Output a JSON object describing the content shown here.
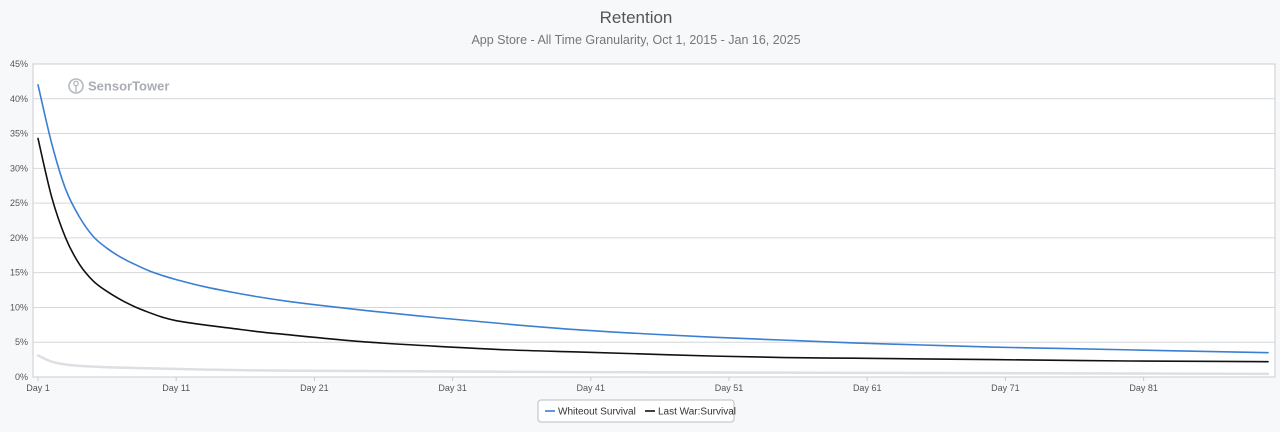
{
  "chart_data": {
    "type": "line",
    "title": "Retention",
    "subtitle": "App Store - All Time Granularity, Oct 1, 2015 - Jan 16, 2025",
    "xlabel": "",
    "ylabel": "",
    "x_range": [
      1,
      90
    ],
    "ylim": [
      0,
      45
    ],
    "y_ticks": [
      0,
      5,
      10,
      15,
      20,
      25,
      30,
      35,
      40,
      45
    ],
    "y_tick_labels": [
      "0%",
      "5%",
      "10%",
      "15%",
      "20%",
      "25%",
      "30%",
      "35%",
      "40%",
      "45%"
    ],
    "x_ticks": [
      1,
      11,
      21,
      31,
      41,
      51,
      61,
      71,
      81
    ],
    "x_tick_labels": [
      "Day 1",
      "Day 11",
      "Day 21",
      "Day 31",
      "Day 41",
      "Day 51",
      "Day 61",
      "Day 71",
      "Day 81"
    ],
    "grid": true,
    "legend_position": "bottom-center",
    "watermark": "SensorTower",
    "series": [
      {
        "name": "Whiteout Survival",
        "color": "#3a7fd1",
        "x": [
          1,
          2,
          3,
          4,
          5,
          6,
          7,
          8,
          9,
          10,
          11,
          13,
          15,
          17,
          19,
          21,
          25,
          30,
          35,
          40,
          45,
          50,
          55,
          60,
          65,
          70,
          75,
          80,
          85,
          90
        ],
        "y": [
          42,
          33.5,
          27,
          23,
          20.2,
          18.5,
          17.2,
          16.2,
          15.3,
          14.6,
          14.0,
          13.0,
          12.2,
          11.5,
          10.9,
          10.4,
          9.5,
          8.5,
          7.6,
          6.8,
          6.2,
          5.7,
          5.3,
          4.9,
          4.6,
          4.3,
          4.1,
          3.9,
          3.7,
          3.5
        ]
      },
      {
        "name": "Last War:Survival",
        "color": "#111111",
        "x": [
          1,
          2,
          3,
          4,
          5,
          6,
          7,
          8,
          9,
          10,
          11,
          13,
          15,
          17,
          19,
          21,
          25,
          30,
          35,
          40,
          45,
          50,
          55,
          60,
          65,
          70,
          75,
          80,
          85,
          90
        ],
        "y": [
          34.3,
          25.8,
          20.0,
          16.2,
          13.8,
          12.3,
          11.1,
          10.1,
          9.3,
          8.6,
          8.1,
          7.5,
          7.0,
          6.5,
          6.1,
          5.7,
          5.0,
          4.4,
          3.9,
          3.6,
          3.3,
          3.0,
          2.8,
          2.7,
          2.6,
          2.5,
          2.4,
          2.3,
          2.25,
          2.2
        ]
      },
      {
        "color": "#dcdfe3",
        "x": [
          1,
          2,
          3,
          4,
          5,
          6,
          8,
          10,
          15,
          20,
          30,
          40,
          50,
          60,
          70,
          80,
          90
        ],
        "y": [
          3.1,
          2.2,
          1.8,
          1.6,
          1.5,
          1.4,
          1.3,
          1.2,
          1.0,
          0.9,
          0.8,
          0.7,
          0.65,
          0.6,
          0.55,
          0.5,
          0.45
        ]
      }
    ]
  }
}
